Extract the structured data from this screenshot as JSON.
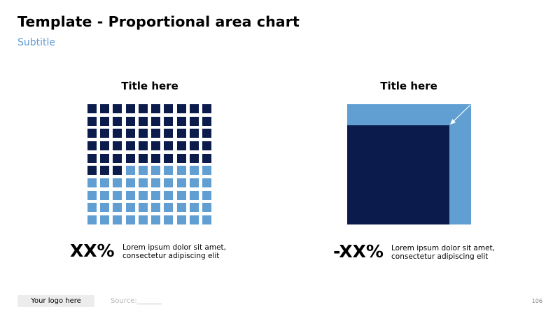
{
  "header": {
    "title": "Template - Proportional area chart",
    "subtitle": "Subtitle"
  },
  "colors": {
    "dark": "#0b1b4b",
    "light": "#619fd3",
    "arrow": "#ffffff"
  },
  "left_panel": {
    "title": "Title here",
    "value_label": "XX%",
    "description_line1": "Lorem ipsum dolor sit amet,",
    "description_line2": "consectetur adipiscing elit"
  },
  "right_panel": {
    "title": "Title here",
    "value_label": "-XX%",
    "description_line1": "Lorem ipsum dolor sit amet,",
    "description_line2": "consectetur adipiscing elit"
  },
  "footer": {
    "logo_text": "Your logo here",
    "source": "Source:_______",
    "page_number": "106"
  },
  "chart_data": [
    {
      "type": "waffle",
      "grid": [
        10,
        10
      ],
      "total_cells": 100,
      "filled_cells": 53,
      "fill_order": "row-major from top-left",
      "filled_color": "dark",
      "unfilled_color": "light"
    },
    {
      "type": "proportional-area",
      "outer_value": 1.0,
      "inner_value": 0.68,
      "anchor": "bottom-left",
      "outer_color": "light",
      "inner_color": "dark",
      "arrow": "top-right corner toward inner corner"
    }
  ]
}
